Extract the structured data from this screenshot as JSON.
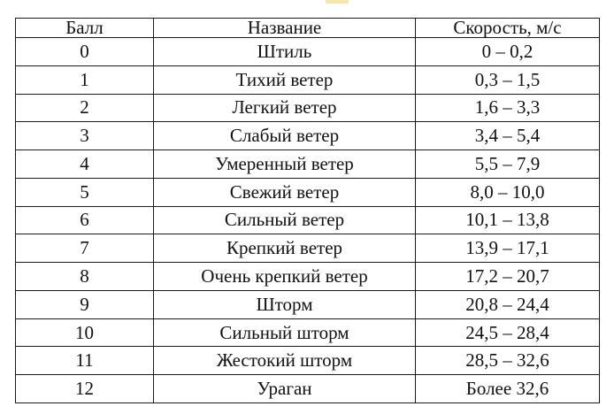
{
  "table": {
    "headers": {
      "ball": "Балл",
      "name": "Название",
      "speed": "Скорость, м/с"
    },
    "rows": [
      {
        "ball": "0",
        "name": "Штиль",
        "speed": "0 – 0,2"
      },
      {
        "ball": "1",
        "name": "Тихий ветер",
        "speed": "0,3 – 1,5"
      },
      {
        "ball": "2",
        "name": "Легкий ветер",
        "speed": "1,6 – 3,3"
      },
      {
        "ball": "3",
        "name": "Слабый ветер",
        "speed": "3,4 – 5,4"
      },
      {
        "ball": "4",
        "name": "Умеренный ветер",
        "speed": "5,5 – 7,9"
      },
      {
        "ball": "5",
        "name": "Свежий ветер",
        "speed": "8,0 – 10,0"
      },
      {
        "ball": "6",
        "name": "Сильный ветер",
        "speed": "10,1 – 13,8"
      },
      {
        "ball": "7",
        "name": "Крепкий ветер",
        "speed": "13,9 – 17,1"
      },
      {
        "ball": "8",
        "name": "Очень крепкий ветер",
        "speed": "17,2 – 20,7"
      },
      {
        "ball": "9",
        "name": "Шторм",
        "speed": "20,8 – 24,4"
      },
      {
        "ball": "10",
        "name": "Сильный шторм",
        "speed": "24,5 – 28,4"
      },
      {
        "ball": "11",
        "name": "Жестокий шторм",
        "speed": "28,5 – 32,6"
      },
      {
        "ball": "12",
        "name": "Ураган",
        "speed": "Более 32,6"
      }
    ]
  }
}
